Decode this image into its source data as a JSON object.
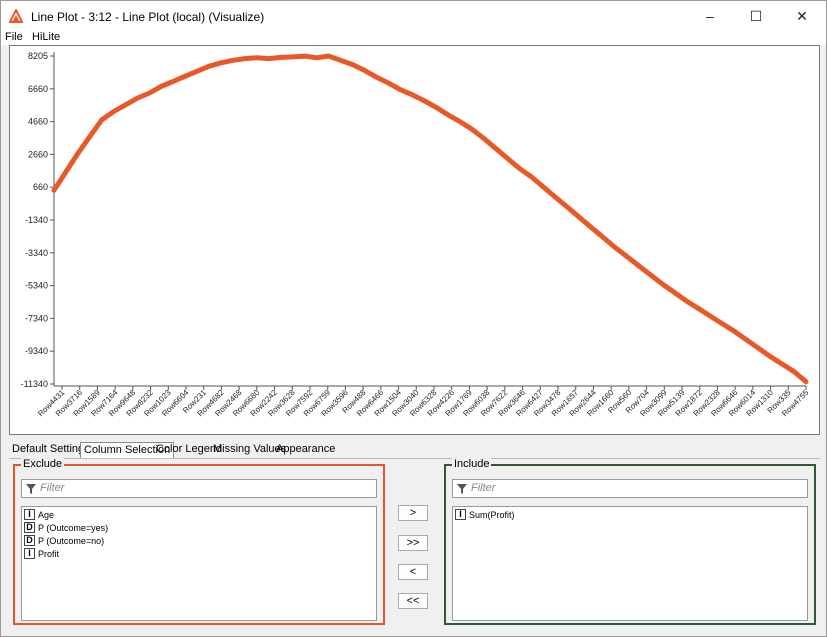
{
  "window": {
    "title": "Line Plot - 3:12 - Line Plot (local) (Visualize)",
    "controls": {
      "minimize": "–",
      "maximize": "☐",
      "close": "✕"
    }
  },
  "menu": {
    "items": [
      "File",
      "HiLite"
    ]
  },
  "colors": {
    "series": "#e8592a",
    "exclude_border": "#e3572b",
    "include_border": "#2f5a37",
    "app_icon": "#e8592a"
  },
  "chart_data": {
    "type": "line",
    "y_ticks": [
      "8205",
      "6660",
      "4660",
      "2660",
      "660",
      "-1340",
      "-3340",
      "-5340",
      "-7340",
      "-9340",
      "-11340"
    ],
    "ylim": [
      -11340,
      8205
    ],
    "x_ticks": [
      "Row4431",
      "Row3716",
      "Row1589",
      "Row7164",
      "Row9648",
      "Row8232",
      "Row1023",
      "Row6604",
      "Row231",
      "Row4682",
      "Row2468",
      "Row6680",
      "Row2242",
      "Row3628",
      "Row7592",
      "Row6759",
      "Row3596",
      "Row488",
      "Row6466",
      "Row1504",
      "Row3040",
      "Row6328",
      "Row4226",
      "Row1769",
      "Row6038",
      "Row7622",
      "Row3646",
      "Row6427",
      "Row3478",
      "Row1657",
      "Row2644",
      "Row1660",
      "Row560",
      "Row704",
      "Row3099",
      "Row5139",
      "Row1872",
      "Row2328",
      "Row6646",
      "Row6014",
      "Row1310",
      "Row335",
      "Row4755"
    ],
    "series": [
      {
        "values": [
          200,
          1300,
          2400,
          3400,
          4400,
          4900,
          5300,
          5700,
          6000,
          6400,
          6700,
          7000,
          7300,
          7600,
          7800,
          7950,
          8050,
          8100,
          8050,
          8120,
          8150,
          8200,
          8100,
          8205,
          7950,
          7700,
          7350,
          6950,
          6600,
          6200,
          5900,
          5550,
          5150,
          4700,
          4300,
          3850,
          3300,
          2700,
          2100,
          1500,
          1000,
          400,
          -200,
          -800,
          -1400,
          -2000,
          -2600,
          -3200,
          -3750,
          -4300,
          -4850,
          -5400,
          -5900,
          -6400,
          -6850,
          -7300,
          -7750,
          -8200,
          -8700,
          -9200,
          -9700,
          -10150,
          -10600,
          -11200
        ]
      }
    ]
  },
  "tabs": [
    {
      "label": "Default Settings"
    },
    {
      "label": "Column Selection"
    },
    {
      "label": "Color Legend"
    },
    {
      "label": "Missing Values"
    },
    {
      "label": "Appearance"
    }
  ],
  "exclude": {
    "title": "Exclude",
    "filter_placeholder": "Filter",
    "items": [
      {
        "type": "I",
        "label": "Age"
      },
      {
        "type": "D",
        "label": "P (Outcome=yes)"
      },
      {
        "type": "D",
        "label": "P (Outcome=no)"
      },
      {
        "type": "I",
        "label": "Profit"
      }
    ]
  },
  "include": {
    "title": "Include",
    "filter_placeholder": "Filter",
    "items": [
      {
        "type": "I",
        "label": "Sum(Profit)"
      }
    ]
  },
  "buttons": {
    "add": ">",
    "add_all": ">>",
    "remove": "<",
    "remove_all": "<<"
  }
}
